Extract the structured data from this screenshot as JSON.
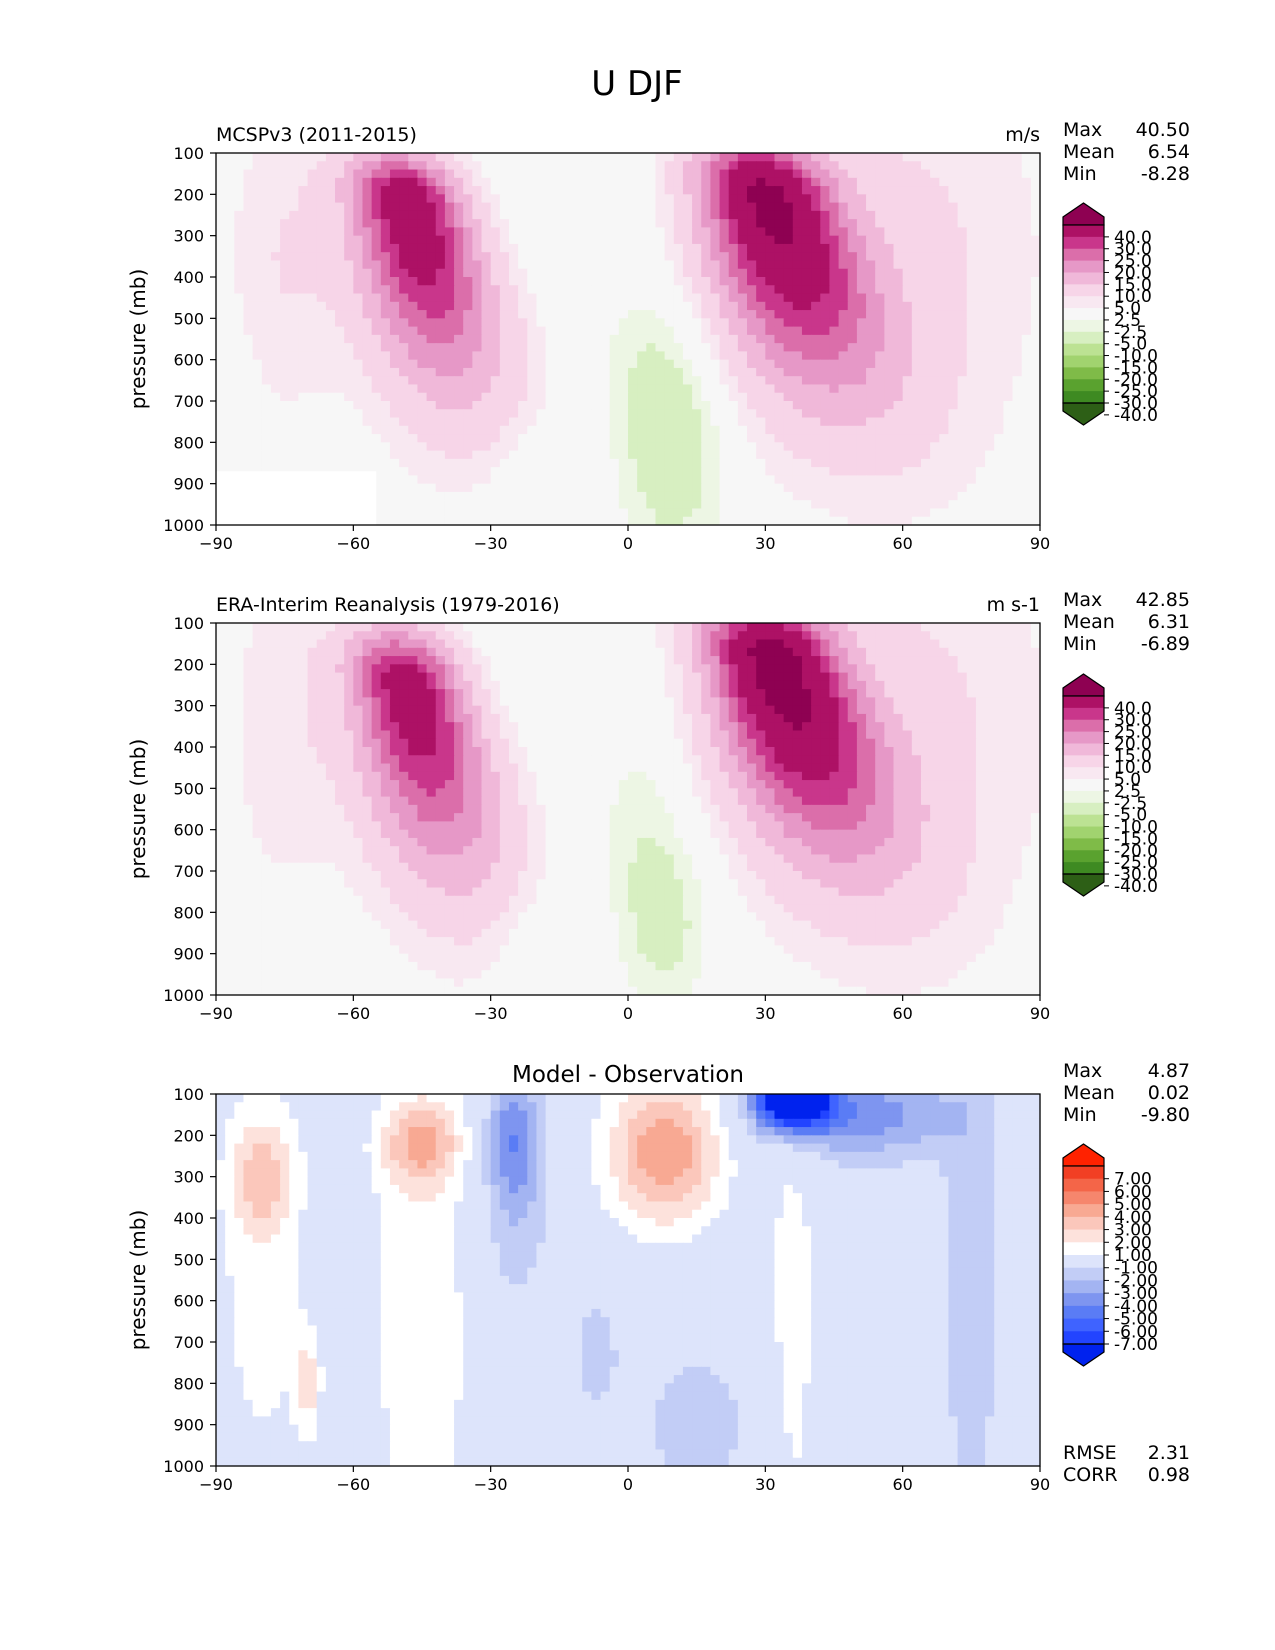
{
  "figure": {
    "title": "U DJF"
  },
  "palettes": {
    "main": [
      "#2d5f16",
      "#3e8a22",
      "#5aa22f",
      "#7fbb48",
      "#a1d36f",
      "#bce293",
      "#d7efc1",
      "#edf6e4",
      "#f7f7f7",
      "#f8e8f1",
      "#f7d5e8",
      "#f0b8d9",
      "#e698c7",
      "#db6eaa",
      "#c9368b",
      "#ad1165",
      "#8e0152"
    ],
    "diff": [
      "#0022ee",
      "#2244ff",
      "#3f63ff",
      "#5a7cf5",
      "#7e95f0",
      "#a3b4f2",
      "#c2cdf6",
      "#dde4fb",
      "#ffffff",
      "#fde2dc",
      "#fbc7bb",
      "#f8a993",
      "#f6866d",
      "#f46548",
      "#f23f24",
      "#ff2200"
    ]
  },
  "panels": [
    {
      "id": "mcsp",
      "left_title": "MCSPv3 (2011-2015)",
      "center_title": "",
      "units": "m/s",
      "stats": [
        {
          "label": "Max",
          "value": "40.50"
        },
        {
          "label": "Mean",
          "value": "6.54"
        },
        {
          "label": "Min",
          "value": "-8.28"
        }
      ],
      "extra_stats": [],
      "ylabel": "pressure (mb)",
      "colorbar": {
        "palette": "main",
        "labels": [
          "40.0",
          "30.0",
          "25.0",
          "20.0",
          "15.0",
          "10.0",
          "5.0",
          "2.5",
          "-2.5",
          "-5.0",
          "-10.0",
          "-15.0",
          "-20.0",
          "-25.0",
          "-30.0",
          "-40.0"
        ]
      }
    },
    {
      "id": "era",
      "left_title": "ERA-Interim Reanalysis (1979-2016)",
      "center_title": "",
      "units": "m s-1",
      "stats": [
        {
          "label": "Max",
          "value": "42.85"
        },
        {
          "label": "Mean",
          "value": "6.31"
        },
        {
          "label": "Min",
          "value": "-6.89"
        }
      ],
      "extra_stats": [],
      "ylabel": "pressure (mb)",
      "colorbar": {
        "palette": "main",
        "labels": [
          "40.0",
          "30.0",
          "25.0",
          "20.0",
          "15.0",
          "10.0",
          "5.0",
          "2.5",
          "-2.5",
          "-5.0",
          "-10.0",
          "-15.0",
          "-20.0",
          "-25.0",
          "-30.0",
          "-40.0"
        ]
      }
    },
    {
      "id": "diff",
      "left_title": "",
      "center_title": "Model - Observation",
      "units": "",
      "stats": [
        {
          "label": "Max",
          "value": "4.87"
        },
        {
          "label": "Mean",
          "value": "0.02"
        },
        {
          "label": "Min",
          "value": "-9.80"
        }
      ],
      "extra_stats": [
        {
          "label": "RMSE",
          "value": "2.31"
        },
        {
          "label": "CORR",
          "value": "0.98"
        }
      ],
      "ylabel": "pressure (mb)",
      "colorbar": {
        "palette": "diff",
        "labels": [
          "7.00",
          "6.00",
          "5.00",
          "4.00",
          "3.00",
          "2.00",
          "1.00",
          "-1.00",
          "-2.00",
          "-3.00",
          "-4.00",
          "-5.00",
          "-6.00",
          "-7.00"
        ]
      }
    }
  ],
  "chart_data": [
    {
      "type": "heatmap",
      "title": "MCSPv3 (2011-2015)",
      "units": "m/s",
      "xlabel": "",
      "ylabel": "pressure (mb)",
      "xlim": [
        -90,
        90
      ],
      "ylim": [
        1000,
        100
      ],
      "x_ticks": [
        "−90",
        "−60",
        "−30",
        "0",
        "30",
        "60",
        "90"
      ],
      "y_ticks": [
        "100",
        "200",
        "300",
        "400",
        "500",
        "600",
        "700",
        "800",
        "900",
        "1000"
      ],
      "jets": [
        {
          "lat": -47,
          "p": 230,
          "max": 37
        },
        {
          "lat": 30,
          "p": 200,
          "max": 40.5
        }
      ],
      "easterlies": [
        {
          "lat": 10,
          "p": 800,
          "min": -8.3
        },
        {
          "lat": -20,
          "p": 900,
          "min": -3
        }
      ],
      "missing_region": {
        "lat": [
          -90,
          -55
        ],
        "p": [
          870,
          1000
        ]
      }
    },
    {
      "type": "heatmap",
      "title": "ERA-Interim Reanalysis (1979-2016)",
      "units": "m s-1",
      "xlabel": "",
      "ylabel": "pressure (mb)",
      "xlim": [
        -90,
        90
      ],
      "ylim": [
        1000,
        100
      ],
      "x_ticks": [
        "−90",
        "−60",
        "−30",
        "0",
        "30",
        "60",
        "90"
      ],
      "y_ticks": [
        "100",
        "200",
        "300",
        "400",
        "500",
        "600",
        "700",
        "800",
        "900",
        "1000"
      ],
      "jets": [
        {
          "lat": -48,
          "p": 250,
          "max": 35
        },
        {
          "lat": 32,
          "p": 200,
          "max": 42.85
        }
      ],
      "easterlies": [
        {
          "lat": 8,
          "p": 800,
          "min": -6.9
        },
        {
          "lat": -20,
          "p": 880,
          "min": -3
        }
      ]
    },
    {
      "type": "heatmap",
      "title": "Model - Observation",
      "xlabel": "",
      "ylabel": "pressure (mb)",
      "xlim": [
        -90,
        90
      ],
      "ylim": [
        1000,
        100
      ],
      "x_ticks": [
        "−90",
        "−60",
        "−30",
        "0",
        "30",
        "60",
        "90"
      ],
      "y_ticks": [
        "100",
        "200",
        "300",
        "400",
        "500",
        "600",
        "700",
        "800",
        "900",
        "1000"
      ],
      "features": [
        {
          "lat": 36,
          "p": 120,
          "value": -9.8
        },
        {
          "lat": 8,
          "p": 250,
          "value": 4.87
        },
        {
          "lat": -45,
          "p": 220,
          "value": 3.5
        },
        {
          "lat": -25,
          "p": 200,
          "value": -3
        },
        {
          "lat": -80,
          "p": 300,
          "value": 2.5
        }
      ]
    }
  ]
}
